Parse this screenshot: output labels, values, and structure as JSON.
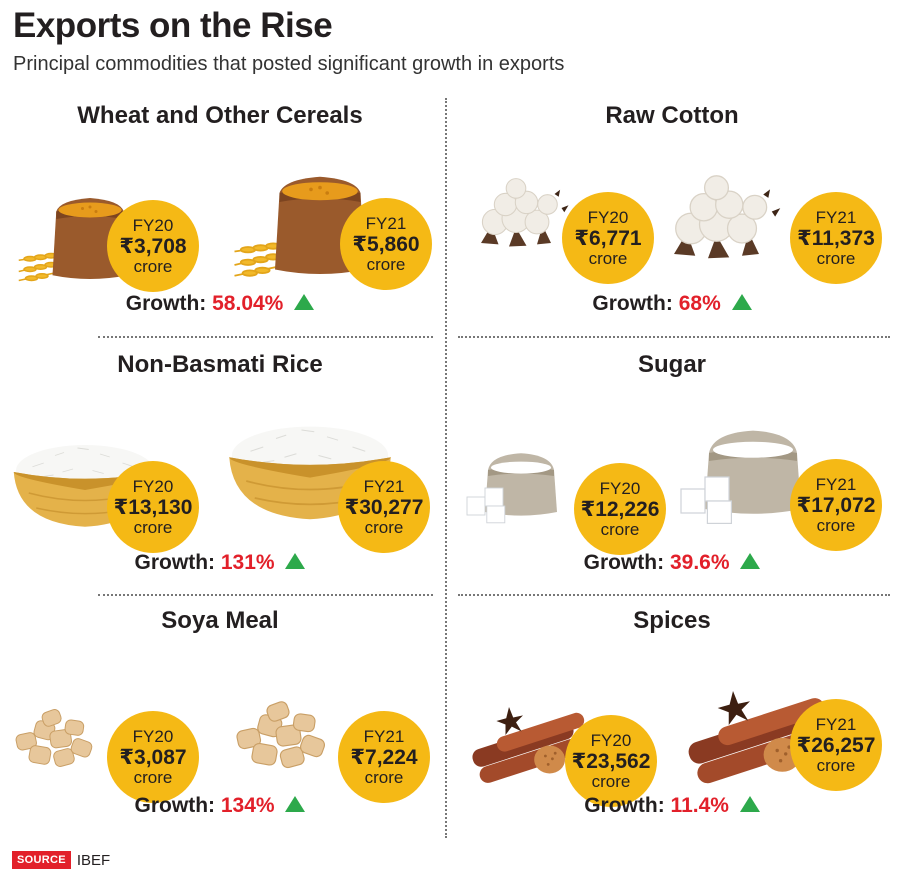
{
  "header": {
    "title": "Exports on the Rise",
    "subtitle": "Principal commodities that posted significant growth in exports"
  },
  "panels": [
    {
      "title": "Wheat and Other Cereals",
      "illustration": "grain-sack-icon",
      "fy20": {
        "label": "FY20",
        "value": "₹3,708",
        "unit": "crore"
      },
      "fy21": {
        "label": "FY21",
        "value": "₹5,860",
        "unit": "crore"
      },
      "growth_label": "Growth:",
      "growth_value": "58.04%"
    },
    {
      "title": "Raw Cotton",
      "illustration": "cotton-balls-icon",
      "fy20": {
        "label": "FY20",
        "value": "₹6,771",
        "unit": "crore"
      },
      "fy21": {
        "label": "FY21",
        "value": "₹11,373",
        "unit": "crore"
      },
      "growth_label": "Growth:",
      "growth_value": "68%"
    },
    {
      "title": "Non-Basmati Rice",
      "illustration": "rice-bowl-icon",
      "fy20": {
        "label": "FY20",
        "value": "₹13,130",
        "unit": "crore"
      },
      "fy21": {
        "label": "FY21",
        "value": "₹30,277",
        "unit": "crore"
      },
      "growth_label": "Growth:",
      "growth_value": "131%"
    },
    {
      "title": "Sugar",
      "illustration": "sugar-sack-icon",
      "fy20": {
        "label": "FY20",
        "value": "₹12,226",
        "unit": "crore"
      },
      "fy21": {
        "label": "FY21",
        "value": "₹17,072",
        "unit": "crore"
      },
      "growth_label": "Growth:",
      "growth_value": "39.6%"
    },
    {
      "title": "Soya Meal",
      "illustration": "soya-chunks-icon",
      "fy20": {
        "label": "FY20",
        "value": "₹3,087",
        "unit": "crore"
      },
      "fy21": {
        "label": "FY21",
        "value": "₹7,224",
        "unit": "crore"
      },
      "growth_label": "Growth:",
      "growth_value": "134%"
    },
    {
      "title": "Spices",
      "illustration": "cinnamon-spices-icon",
      "fy20": {
        "label": "FY20",
        "value": "₹23,562",
        "unit": "crore"
      },
      "fy21": {
        "label": "FY21",
        "value": "₹26,257",
        "unit": "crore"
      },
      "growth_label": "Growth:",
      "growth_value": "11.4%"
    }
  ],
  "source": {
    "tag": "SOURCE",
    "name": "IBEF"
  },
  "colors": {
    "badge": "#f5b915",
    "growth_pct": "#e2202a",
    "arrow": "#2da94b",
    "source_tag": "#e2202a"
  }
}
